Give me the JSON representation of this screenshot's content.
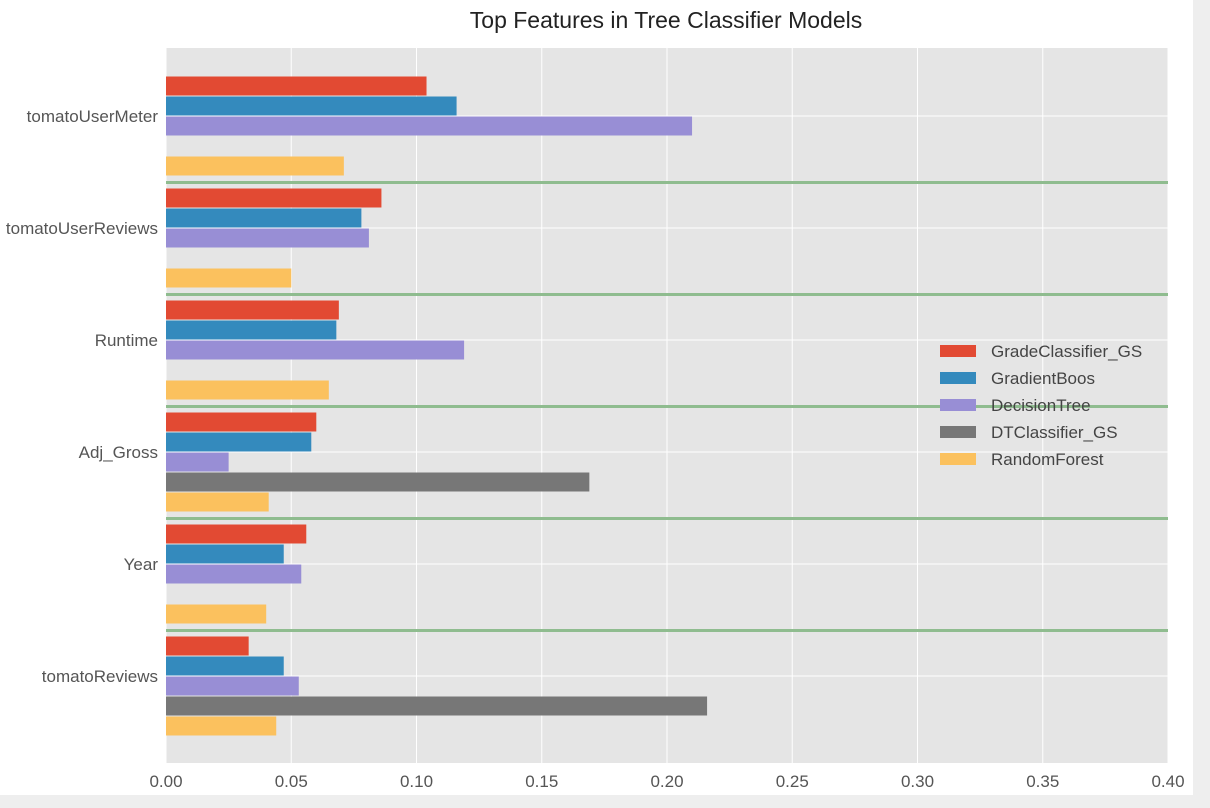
{
  "chart_data": {
    "type": "bar",
    "orientation": "horizontal",
    "title": "Top Features in Tree Classifier Models",
    "xlabel": "",
    "ylabel": "",
    "xlim": [
      0,
      0.4
    ],
    "xticks": [
      "0.00",
      "0.05",
      "0.10",
      "0.15",
      "0.20",
      "0.25",
      "0.30",
      "0.35",
      "0.40"
    ],
    "grid": true,
    "legend_position": "right",
    "categories": [
      "tomatoUserMeter",
      "tomatoUserReviews",
      "Runtime",
      "Adj_Gross",
      "Year",
      "tomatoReviews"
    ],
    "series": [
      {
        "name": "GradeClassifier_GS",
        "color": "#E24A33",
        "values": [
          0.104,
          0.086,
          0.069,
          0.06,
          0.056,
          0.033
        ]
      },
      {
        "name": "GradientBoos",
        "color": "#348ABD",
        "values": [
          0.116,
          0.078,
          0.068,
          0.058,
          0.047,
          0.047
        ]
      },
      {
        "name": "DecisionTree",
        "color": "#988ED5",
        "values": [
          0.21,
          0.081,
          0.119,
          0.025,
          0.054,
          0.053
        ]
      },
      {
        "name": "DTClassifier_GS",
        "color": "#777777",
        "values": [
          0,
          0,
          0,
          0.169,
          0,
          0.216
        ]
      },
      {
        "name": "RandomForest",
        "color": "#FBC15E",
        "values": [
          0.071,
          0.05,
          0.065,
          0.041,
          0.04,
          0.044
        ]
      }
    ],
    "separator_color": "#8FBC8F",
    "plot_background": "#E5E5E5",
    "grid_color": "#FFFFFF"
  }
}
